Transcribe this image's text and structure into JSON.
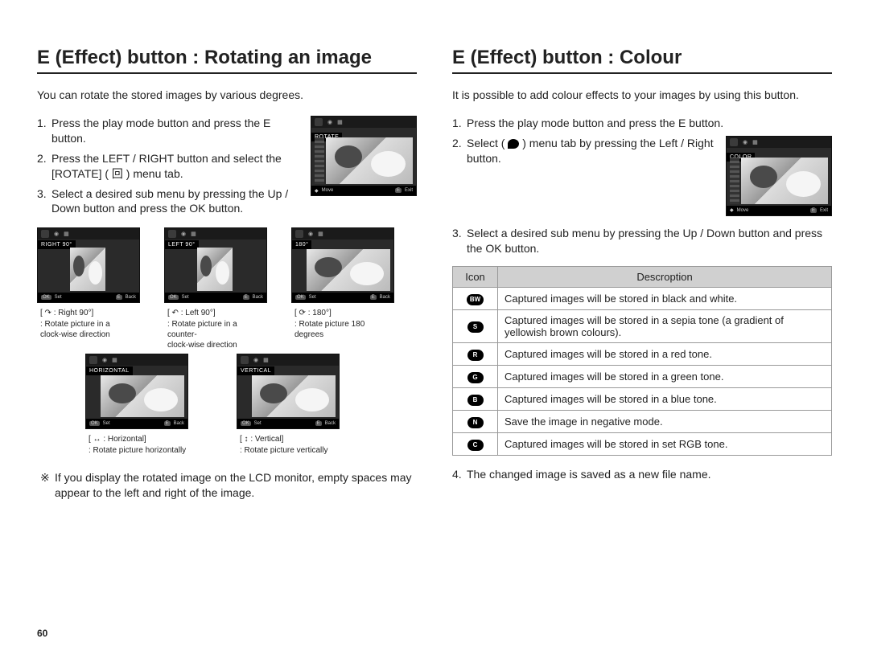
{
  "page_number": "60",
  "left": {
    "title": "E (Effect) button : Rotating an image",
    "intro": "You can rotate the stored images by various degrees.",
    "steps": [
      "Press the play mode button and press the E button.",
      "Press the LEFT / RIGHT button and select the [ROTATE] ( 回 ) menu tab.",
      "Select a desired sub menu by pressing the Up / Down button and press the OK button."
    ],
    "main_screen": {
      "label": "ROTATE",
      "footer_left": "Move",
      "footer_right": "Exit",
      "key_right": "E"
    },
    "thumbs_row1": [
      {
        "label": "Right 90°",
        "ok": "OK",
        "set": "Set",
        "e": "E",
        "back": "Back",
        "caption1": "[ ↷ : Right 90°]",
        "caption2": ": Rotate picture in a",
        "caption3": "  clock-wise direction"
      },
      {
        "label": "Left 90°",
        "ok": "OK",
        "set": "Set",
        "e": "E",
        "back": "Back",
        "caption1": "[ ↶ : Left 90°]",
        "caption2": ": Rotate picture in a counter-",
        "caption3": "  clock-wise direction"
      },
      {
        "label": "180°",
        "ok": "OK",
        "set": "Set",
        "e": "E",
        "back": "Back",
        "caption1": "[ ⟳ : 180°]",
        "caption2": ": Rotate picture 180 degrees",
        "caption3": ""
      }
    ],
    "thumbs_row2": [
      {
        "label": "Horizontal",
        "ok": "OK",
        "set": "Set",
        "e": "E",
        "back": "Back",
        "caption1": "[ ↔ : Horizontal]",
        "caption2": ": Rotate picture horizontally"
      },
      {
        "label": "Vertical",
        "ok": "OK",
        "set": "Set",
        "e": "E",
        "back": "Back",
        "caption1": "[ ↕ : Vertical]",
        "caption2": ": Rotate picture vertically"
      }
    ],
    "note": "If you display the rotated image on the LCD monitor, empty spaces may appear to the left and right of the image."
  },
  "right": {
    "title": "E (Effect) button : Colour",
    "intro": "It is possible to add colour effects to your images by using this button.",
    "step1": "Press the play mode button and press the E button.",
    "step2a": "Select (",
    "step2b": ") menu tab by pressing the Left / Right button.",
    "step3": "Select a desired sub menu by pressing the Up / Down button and press the OK button.",
    "step4": "The changed image is saved as a new file name.",
    "color_screen": {
      "label": "COLOR",
      "footer_left": "Move",
      "footer_right": "Exit",
      "key_right": "E"
    },
    "table": {
      "headers": [
        "Icon",
        "Descroption"
      ],
      "rows": [
        {
          "icon": "BW",
          "desc": "Captured images will be stored in black and white."
        },
        {
          "icon": "S",
          "desc": "Captured images will be stored in a sepia tone (a gradient of yellowish brown colours)."
        },
        {
          "icon": "R",
          "desc": "Captured images will be stored in a red tone."
        },
        {
          "icon": "G",
          "desc": "Captured images will be stored in a green tone."
        },
        {
          "icon": "B",
          "desc": "Captured images will be stored in a blue tone."
        },
        {
          "icon": "N",
          "desc": "Save the image in negative mode."
        },
        {
          "icon": "C",
          "desc": "Captured images will be stored in set RGB tone."
        }
      ]
    }
  },
  "style": {
    "title_fontsize": 24,
    "body_fontsize": 14,
    "caption_fontsize": 10,
    "rule_color": "#222222",
    "table_border": "#999999",
    "table_header_bg": "#d0d0d0",
    "badge_bg": "#000000",
    "badge_fg": "#ffffff"
  }
}
